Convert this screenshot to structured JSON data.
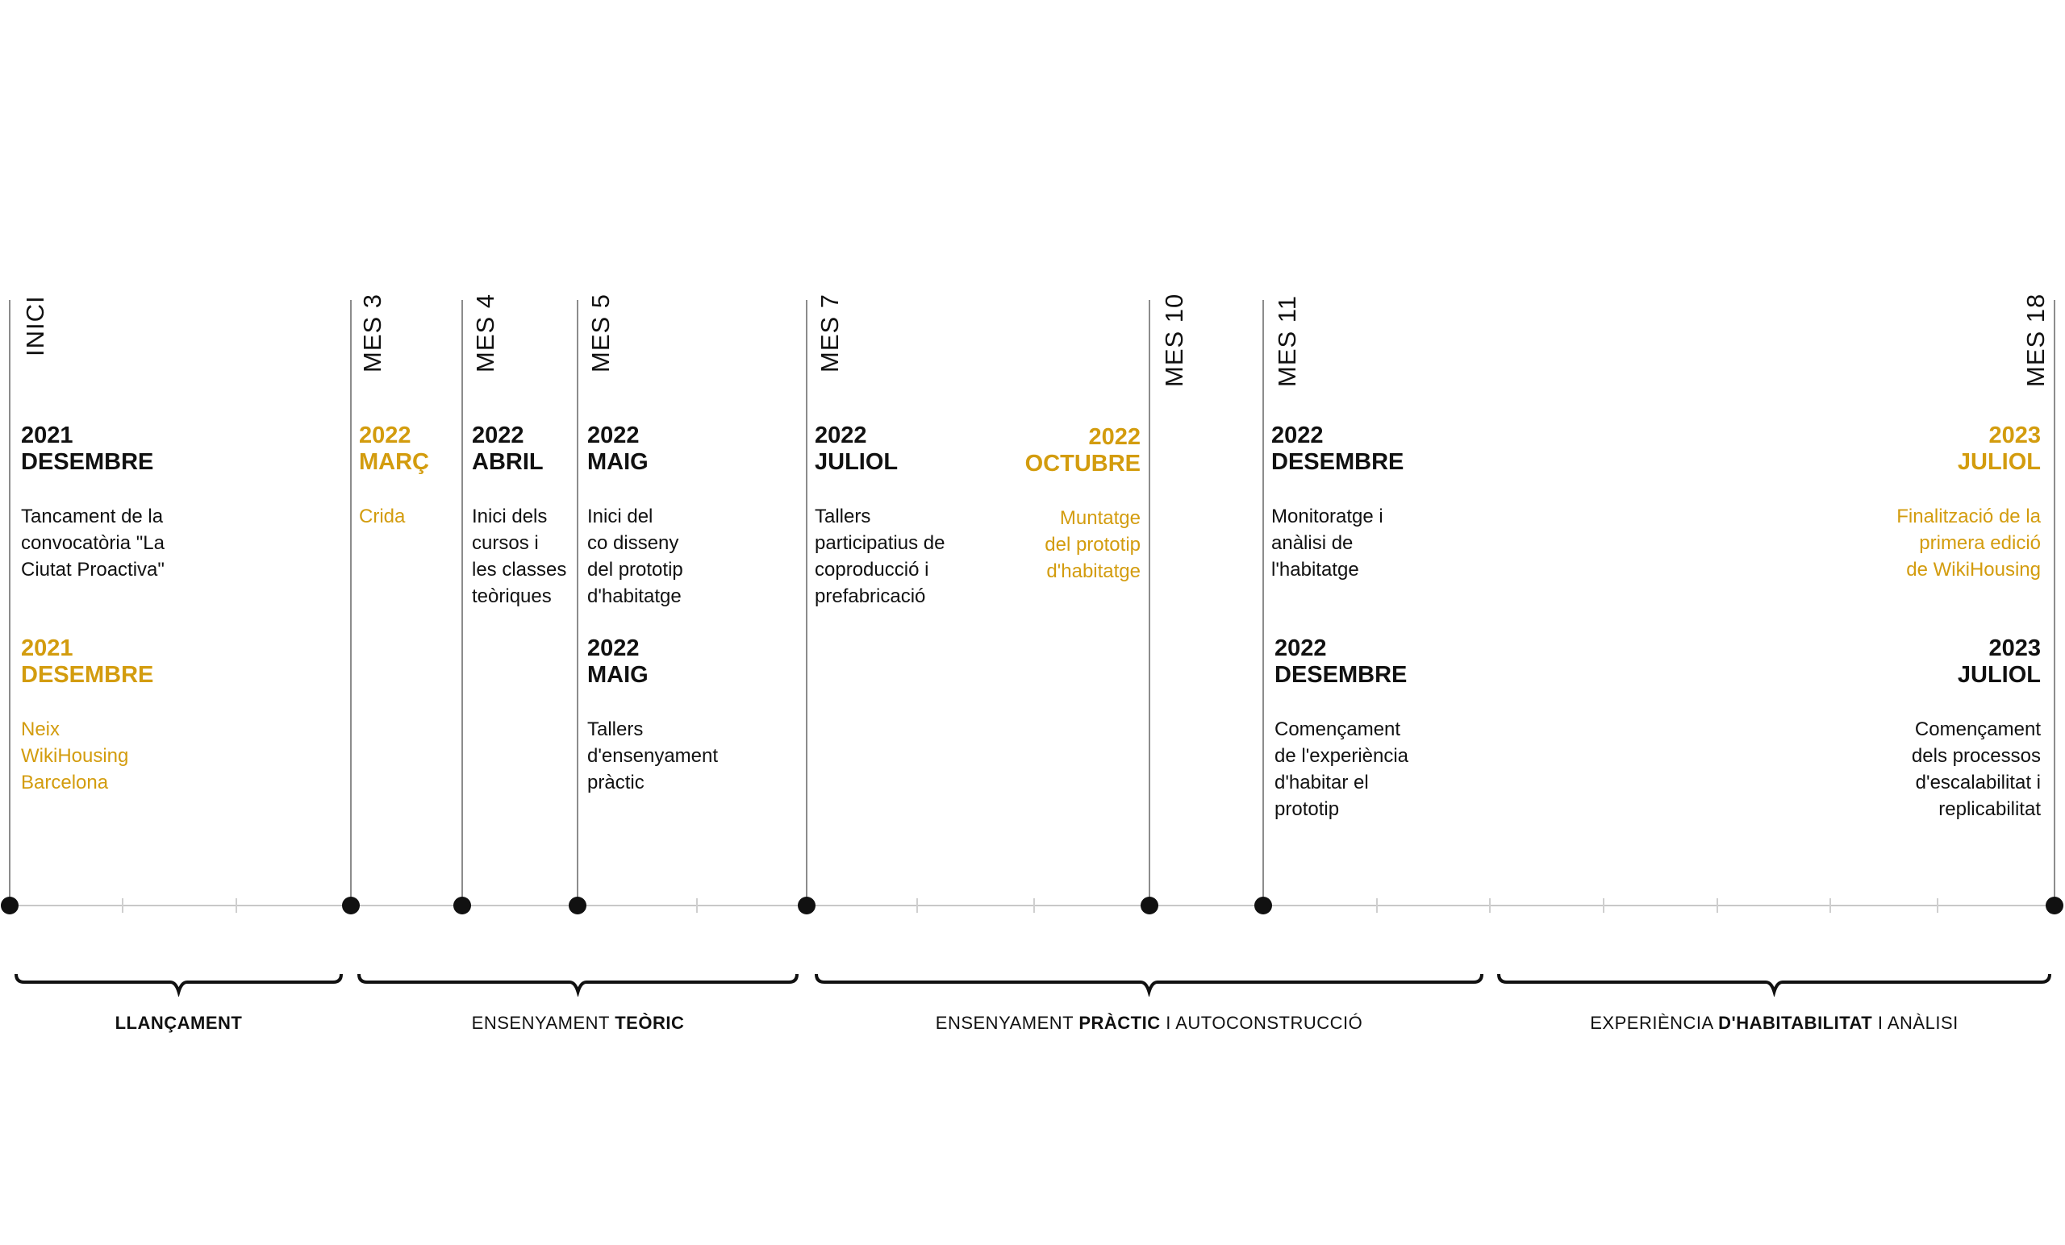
{
  "months": {
    "inici": "INICI",
    "m3": "MES 3",
    "m4": "MES 4",
    "m5": "MES 5",
    "m7": "MES 7",
    "m10": "MES 10",
    "m11": "MES 11",
    "m18": "MES 18"
  },
  "events": {
    "e1": {
      "year": "2021",
      "month": "DESEMBRE",
      "text": "Tancament de la\nconvocatòria \"La\nCiutat Proactiva\""
    },
    "e2": {
      "year": "2021",
      "month": "DESEMBRE",
      "text": "Neix\nWikiHousing\nBarcelona"
    },
    "e3": {
      "year": "2022",
      "month": "MARÇ",
      "text": "Crida"
    },
    "e4": {
      "year": "2022",
      "month": "ABRIL",
      "text": "Inici dels\ncursos i\nles classes\nteòriques"
    },
    "e5": {
      "year": "2022",
      "month": "MAIG",
      "text": "Inici del\nco disseny\ndel prototip\nd'habitatge"
    },
    "e6": {
      "year": "2022",
      "month": "MAIG",
      "text": "Tallers\nd'ensenyament\npràctic"
    },
    "e7": {
      "year": "2022",
      "month": "JULIOL",
      "text": "Tallers\nparticipatius de\ncoproducció i\nprefabricació"
    },
    "e8": {
      "year": "2022",
      "month": "OCTUBRE",
      "text": "Muntatge\ndel prototip\nd'habitatge"
    },
    "e9": {
      "year": "2022",
      "month": "DESEMBRE",
      "text": "Monitoratge i\nanàlisi de\nl'habitatge"
    },
    "e10": {
      "year": "2022",
      "month": "DESEMBRE",
      "text": "Començament\nde l'experiència\nd'habitar el\nprototip"
    },
    "e11": {
      "year": "2023",
      "month": "JULIOL",
      "text": "Finalització de la\nprimera edició\nde WikiHousing"
    },
    "e12": {
      "year": "2023",
      "month": "JULIOL",
      "text": "Començament\ndels processos\nd'escalabilitat i\nreplicabilitat"
    }
  },
  "phases": {
    "p1": {
      "pre": "",
      "bold": "LLANÇAMENT",
      "post": ""
    },
    "p2": {
      "pre": "ENSENYAMENT ",
      "bold": "TEÒRIC",
      "post": ""
    },
    "p3": {
      "pre": "ENSENYAMENT ",
      "bold": "PRÀCTIC",
      "post": " I AUTOCONSTRUCCIÓ"
    },
    "p4": {
      "pre": "EXPERIÈNCIA ",
      "bold": "D'HABITABILITAT",
      "post": " I ANÀLISI"
    }
  },
  "colors": {
    "accent": "#d39c0e",
    "text": "#111111",
    "line": "#8c8c8c"
  }
}
